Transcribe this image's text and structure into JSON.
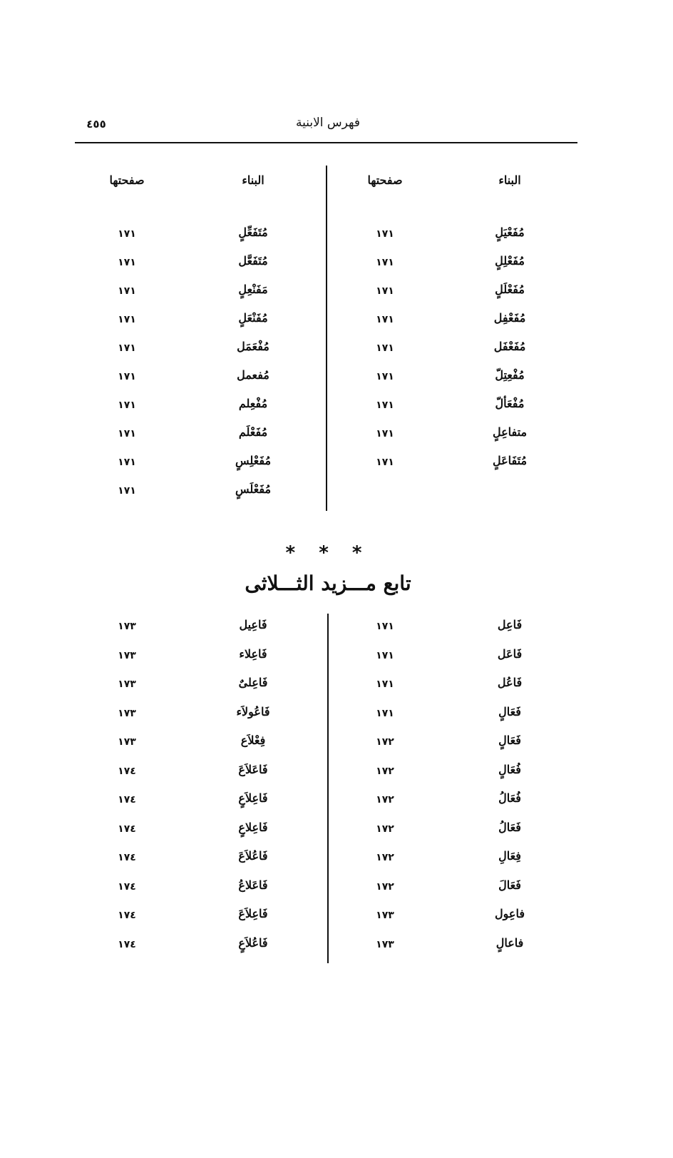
{
  "header": {
    "title": "فهرس الابنية",
    "page_number": "٤٥٥"
  },
  "table1": {
    "headers": {
      "form": "البناء",
      "page": "صفحتها"
    },
    "right": [
      {
        "form": "مُفَعْيَلٍ",
        "page": "١٧١"
      },
      {
        "form": "مُفَعْلِلٍ",
        "page": "١٧١"
      },
      {
        "form": "مُفَعْلَلٍ",
        "page": "١٧١"
      },
      {
        "form": "مُفَعْفِل",
        "page": "١٧١"
      },
      {
        "form": "مُفَعْفَل",
        "page": "١٧١"
      },
      {
        "form": "مُفْعِتِلّ",
        "page": "١٧١"
      },
      {
        "form": "مُفْعَألّ",
        "page": "١٧١"
      },
      {
        "form": "متفاعِلٍ",
        "page": "١٧١"
      },
      {
        "form": "مُتَفَاعَلٍ",
        "page": "١٧١"
      }
    ],
    "left": [
      {
        "form": "مُتَفَعِّلٍ",
        "page": "١٧١"
      },
      {
        "form": "مُتَفَعَّل",
        "page": "١٧١"
      },
      {
        "form": "مَفَنْعِلٍ",
        "page": "١٧١"
      },
      {
        "form": "مُفَنْعَلٍ",
        "page": "١٧١"
      },
      {
        "form": "مُفْعَمَل",
        "page": "١٧١"
      },
      {
        "form": "مُفعمل",
        "page": "١٧١"
      },
      {
        "form": "مُفْعِلم",
        "page": "١٧١"
      },
      {
        "form": "مُفَعْلَم",
        "page": "١٧١"
      },
      {
        "form": "مُفَعْلِسٍ",
        "page": "١٧١"
      },
      {
        "form": "مُفَعْلَسٍ",
        "page": "١٧١"
      }
    ]
  },
  "section": {
    "stars": "* * *",
    "title": "تابع مـــزيد الثـــلاثى"
  },
  "table2": {
    "right": [
      {
        "form": "فَاعِل",
        "page": "١٧١"
      },
      {
        "form": "فَاعَل",
        "page": "١٧١"
      },
      {
        "form": "فَاعُل",
        "page": "١٧١"
      },
      {
        "form": "فَعَالٍ",
        "page": "١٧١"
      },
      {
        "form": "فَعَالٍ",
        "page": "١٧٢"
      },
      {
        "form": "فُعَالٍ",
        "page": "١٧٢"
      },
      {
        "form": "فُعَالُ",
        "page": "١٧٢"
      },
      {
        "form": "فَعَالُ",
        "page": "١٧٢"
      },
      {
        "form": "فِعَالِ",
        "page": "١٧٢"
      },
      {
        "form": "فَعَالَ",
        "page": "١٧٢"
      },
      {
        "form": "فاعِول",
        "page": "١٧٣"
      },
      {
        "form": "فاعالٍ",
        "page": "١٧٣"
      }
    ],
    "left": [
      {
        "form": "فَاعِيل",
        "page": "١٧٣"
      },
      {
        "form": "فَاعِلاء",
        "page": "١٧٣"
      },
      {
        "form": "فَاعِلىٌ",
        "page": "١٧٣"
      },
      {
        "form": "فَاعُولاَء",
        "page": "١٧٣"
      },
      {
        "form": "فِعْلاَع",
        "page": "١٧٣"
      },
      {
        "form": "فَاعَلاَعَ",
        "page": "١٧٤"
      },
      {
        "form": "فَاعِلاَعٍ",
        "page": "١٧٤"
      },
      {
        "form": "فَاعِلاعٍ",
        "page": "١٧٤"
      },
      {
        "form": "فَاعُلاَعَ",
        "page": "١٧٤"
      },
      {
        "form": "فَاعَلاعُ",
        "page": "١٧٤"
      },
      {
        "form": "فَاعِلاَعَ",
        "page": "١٧٤"
      },
      {
        "form": "فَاعُلاَعٍ",
        "page": "١٧٤"
      }
    ]
  }
}
